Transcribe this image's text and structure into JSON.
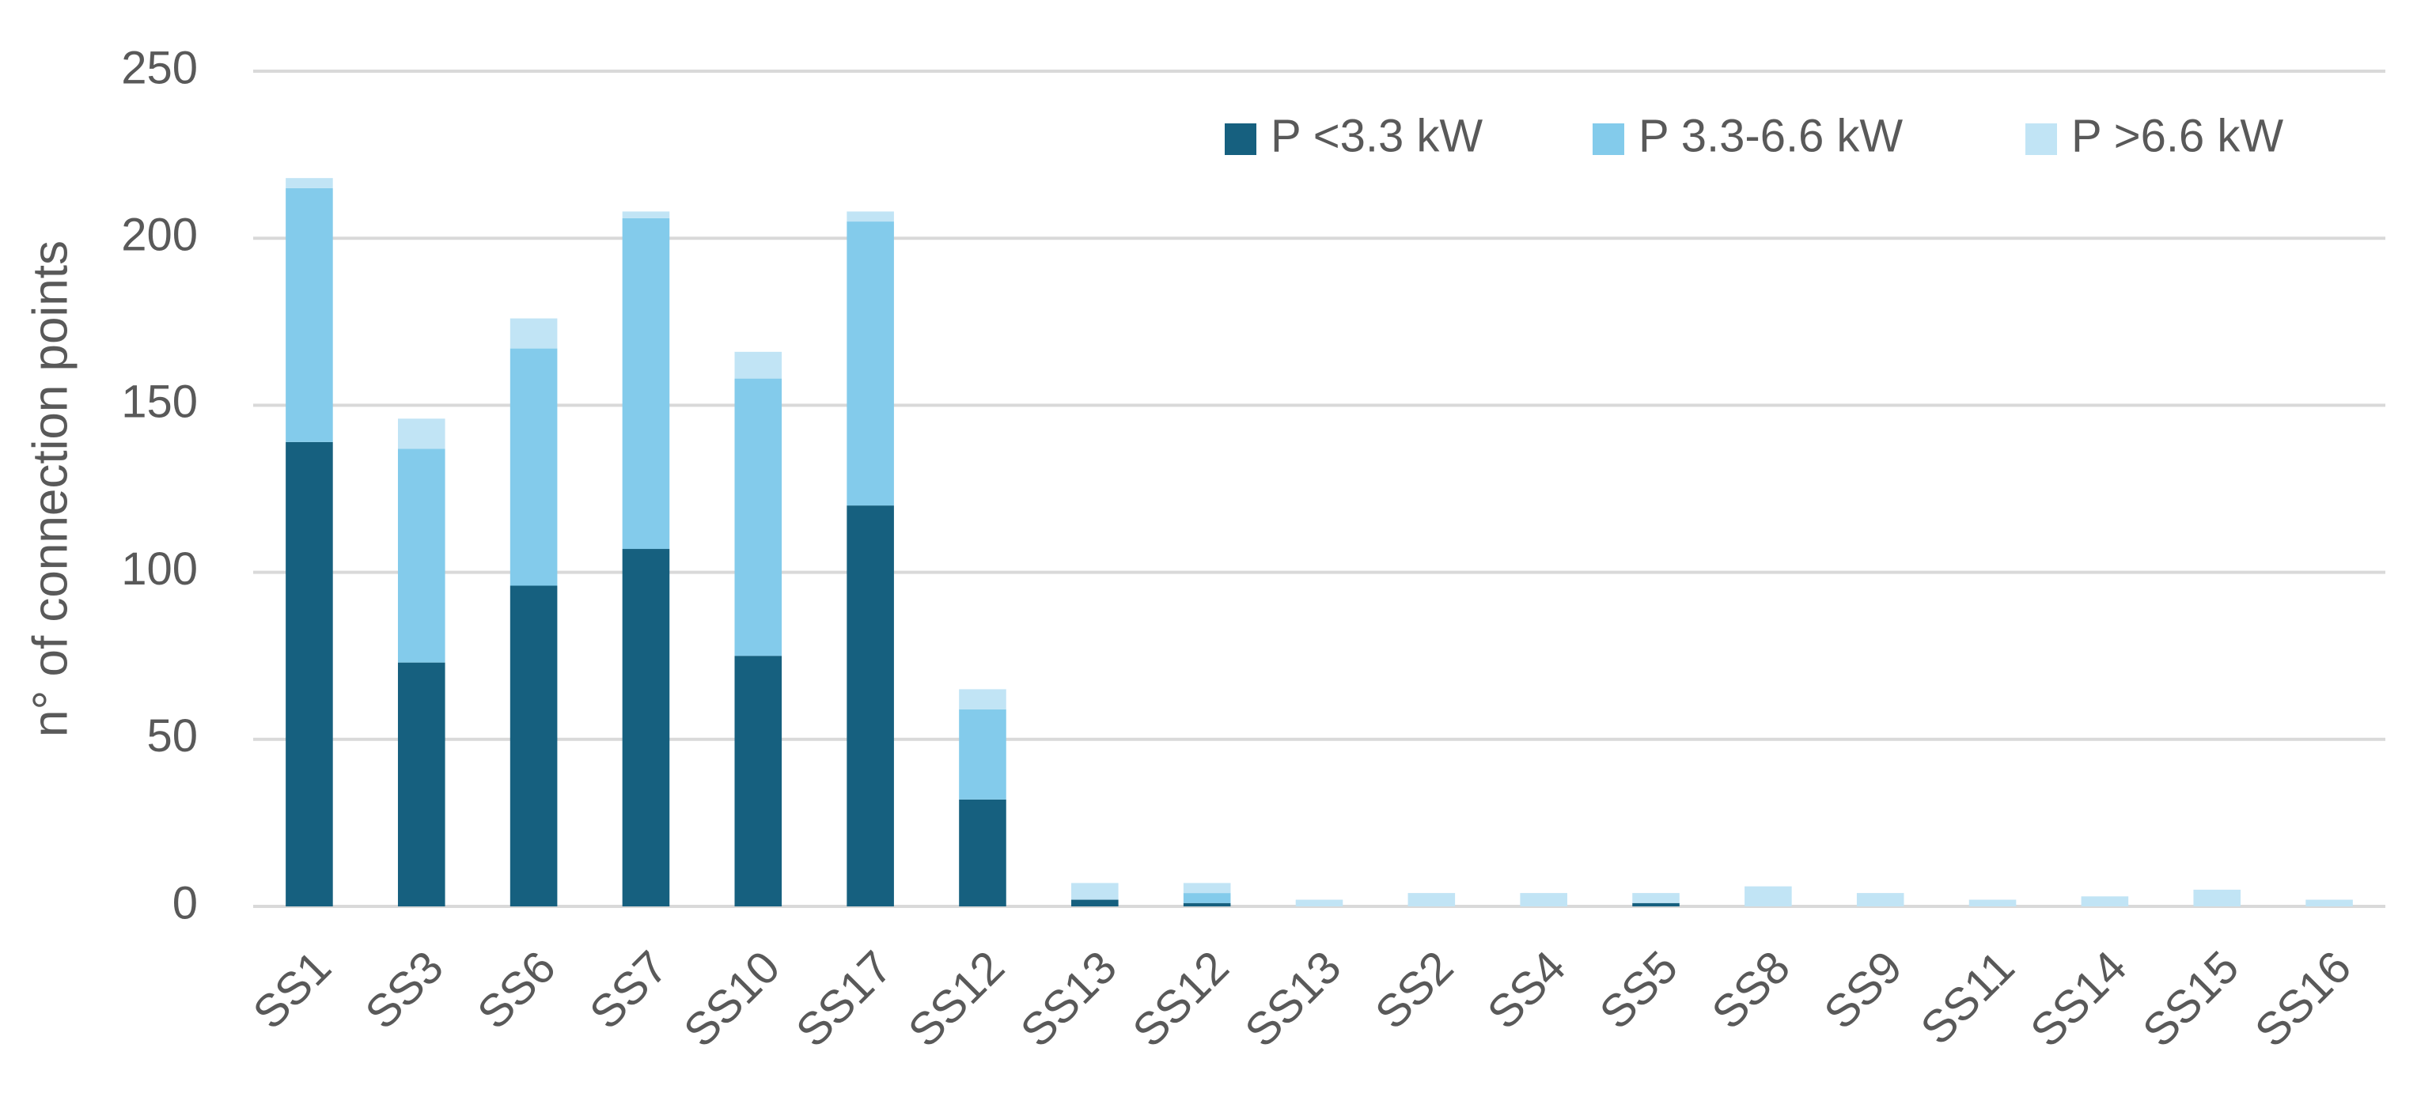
{
  "chart_data": {
    "type": "stacked_bar",
    "y_label": "n° of connection points",
    "categories": [
      "SS1",
      "SS3",
      "SS6",
      "SS7",
      "SS10",
      "SS17",
      "SS12",
      "SS13",
      "SS12",
      "SS13",
      "SS2",
      "SS4",
      "SS5",
      "SS8",
      "SS9",
      "SS11",
      "SS14",
      "SS15",
      "SS16"
    ],
    "series": [
      {
        "name": "P <3.3 kW",
        "color": "#16607f",
        "values": [
          139,
          73,
          96,
          107,
          75,
          120,
          32,
          2,
          1,
          0,
          0,
          0,
          1,
          0,
          0,
          0,
          0,
          0,
          0
        ]
      },
      {
        "name": "P 3.3-6.6 kW",
        "color": "#83cbeb",
        "values": [
          76,
          64,
          71,
          99,
          83,
          85,
          27,
          0,
          3,
          0,
          0,
          0,
          0,
          0,
          0,
          0,
          0,
          0,
          0
        ]
      },
      {
        "name": "P >6.6 kW",
        "color": "#c1e4f5",
        "values": [
          3,
          9,
          9,
          2,
          8,
          3,
          6,
          5,
          3,
          2,
          4,
          4,
          3,
          6,
          4,
          2,
          3,
          5,
          2
        ]
      }
    ],
    "ylim": [
      0,
      250
    ],
    "yticks": [
      0,
      50,
      100,
      150,
      200,
      250
    ],
    "grid": true,
    "legend": "top-right"
  }
}
